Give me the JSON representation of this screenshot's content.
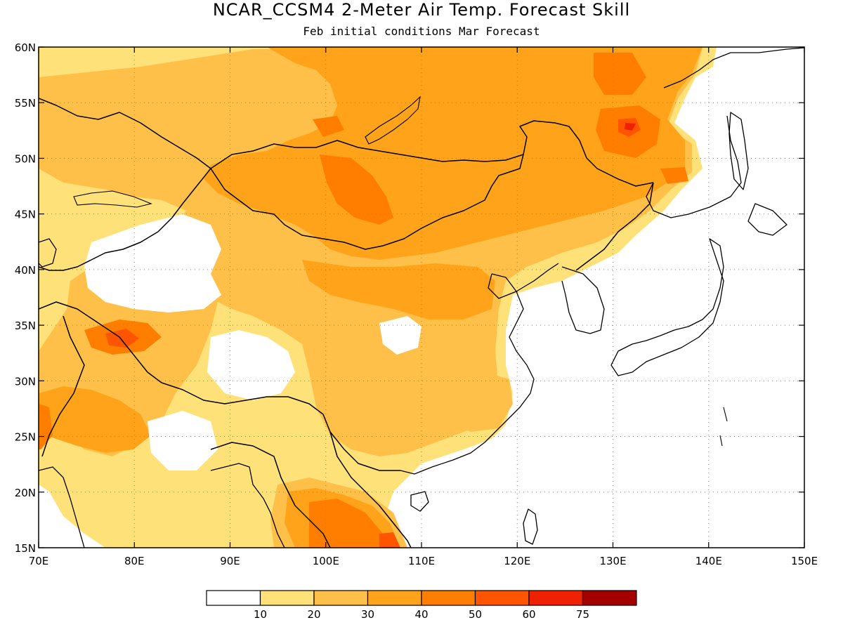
{
  "title": "NCAR_CCSM4 2-Meter Air Temp. Forecast Skill",
  "subtitle": "Feb initial conditions  Mar Forecast",
  "map": {
    "lon_range": [
      70,
      150
    ],
    "lat_range": [
      15,
      60
    ],
    "gridlines": "dotted",
    "lon_ticks": [
      "70E",
      "80E",
      "90E",
      "100E",
      "110E",
      "120E",
      "130E",
      "140E",
      "150E"
    ],
    "lat_ticks": [
      "15N",
      "20N",
      "25N",
      "30N",
      "35N",
      "40N",
      "45N",
      "50N",
      "55N",
      "60N"
    ]
  },
  "colorbar": {
    "labels": [
      "10",
      "20",
      "30",
      "40",
      "50",
      "60",
      "75"
    ],
    "colors": [
      "#ffffff",
      "#ffe17a",
      "#ffc04a",
      "#ffa41a",
      "#ff7e00",
      "#ff5500",
      "#ee2200",
      "#a50000"
    ]
  }
}
